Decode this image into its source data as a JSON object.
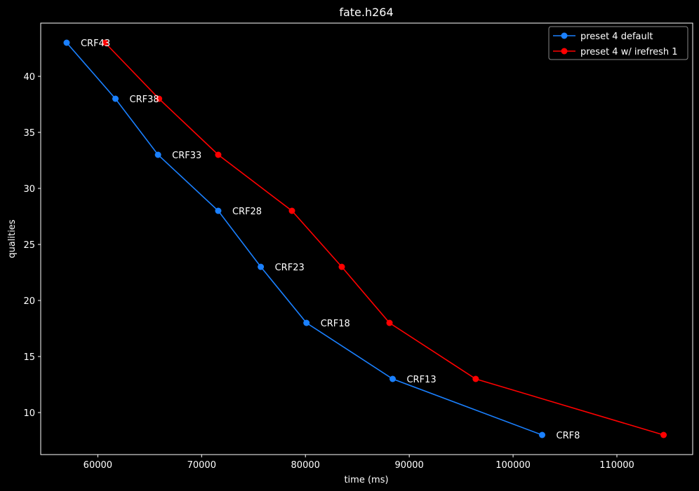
{
  "chart_data": {
    "type": "line",
    "title": "fate.h264",
    "xlabel": "time (ms)",
    "ylabel": "qualities",
    "xlim": [
      54500,
      117300
    ],
    "ylim": [
      6.25,
      44.75
    ],
    "xticks": [
      60000,
      70000,
      80000,
      90000,
      100000,
      110000
    ],
    "xtick_labels": [
      "60000",
      "70000",
      "80000",
      "90000",
      "100000",
      "110000"
    ],
    "yticks": [
      10,
      15,
      20,
      25,
      30,
      35,
      40
    ],
    "ytick_labels": [
      "10",
      "15",
      "20",
      "25",
      "30",
      "35",
      "40"
    ],
    "grid": false,
    "legend_position": "top-right",
    "series": [
      {
        "name": "preset 4 default",
        "color": "#1a80ff",
        "x": [
          57000,
          61700,
          65800,
          71600,
          75700,
          80100,
          88400,
          102800
        ],
        "y": [
          43,
          38,
          33,
          28,
          23,
          18,
          13,
          8
        ]
      },
      {
        "name": "preset 4 w/ irefresh 1",
        "color": "#ff0000",
        "x": [
          60700,
          65900,
          71600,
          78700,
          83500,
          88100,
          96400,
          114500
        ],
        "y": [
          43,
          38,
          33,
          28,
          23,
          18,
          13,
          8
        ]
      }
    ],
    "annotations": [
      {
        "text": "CRF43",
        "x": 57000,
        "y": 43
      },
      {
        "text": "CRF38",
        "x": 61700,
        "y": 38
      },
      {
        "text": "CRF33",
        "x": 65800,
        "y": 33
      },
      {
        "text": "CRF28",
        "x": 71600,
        "y": 28
      },
      {
        "text": "CRF23",
        "x": 75700,
        "y": 23
      },
      {
        "text": "CRF18",
        "x": 80100,
        "y": 18
      },
      {
        "text": "CRF13",
        "x": 88400,
        "y": 13
      },
      {
        "text": "CRF8",
        "x": 102800,
        "y": 8
      }
    ]
  }
}
